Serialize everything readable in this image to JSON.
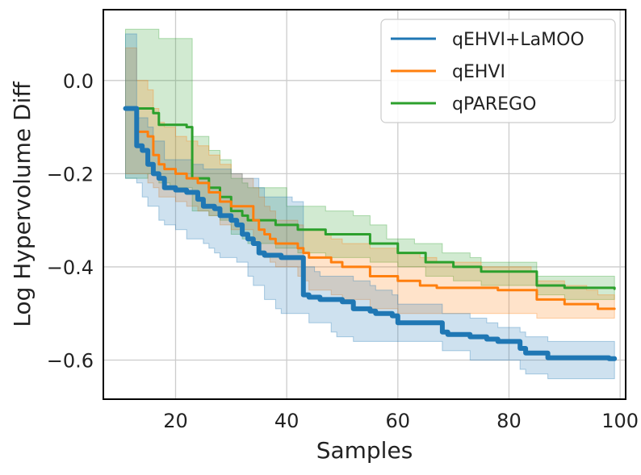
{
  "chart_data": {
    "type": "line",
    "xlabel": "Samples",
    "ylabel": "Log Hypervolume Diff",
    "xlim": [
      7,
      101
    ],
    "ylim": [
      -0.684,
      0.152
    ],
    "xticks": [
      20,
      40,
      60,
      80,
      100
    ],
    "xtick_labels": [
      "20",
      "40",
      "60",
      "80",
      "100"
    ],
    "yticks": [
      0.0,
      -0.2,
      -0.4,
      -0.6
    ],
    "ytick_labels": [
      "0.0",
      "−0.2",
      "−0.4",
      "−0.6"
    ],
    "grid": true,
    "legend_position": "top-right",
    "series": [
      {
        "name": "qEHVI+LaMOO",
        "color": "#1f77b4",
        "x": [
          11,
          12,
          13,
          14,
          15,
          16,
          17,
          18,
          20,
          21,
          22,
          23,
          24,
          25,
          26,
          27,
          28,
          29,
          30,
          31,
          32,
          33,
          34,
          35,
          36,
          37,
          38,
          39,
          40,
          41,
          42,
          43,
          44,
          45,
          46,
          47,
          48,
          49,
          50,
          51,
          52,
          53,
          54,
          55,
          56,
          57,
          58,
          59,
          60,
          61,
          62,
          63,
          64,
          65,
          66,
          67,
          68,
          69,
          70,
          71,
          72,
          73,
          74,
          75,
          76,
          77,
          78,
          79,
          80,
          81,
          82,
          83,
          84,
          85,
          86,
          87,
          88,
          89,
          90,
          92,
          94,
          96,
          98,
          99
        ],
        "y": [
          -0.06,
          -0.06,
          -0.14,
          -0.15,
          -0.18,
          -0.2,
          -0.21,
          -0.23,
          -0.235,
          -0.235,
          -0.24,
          -0.24,
          -0.255,
          -0.27,
          -0.27,
          -0.275,
          -0.29,
          -0.29,
          -0.3,
          -0.31,
          -0.33,
          -0.34,
          -0.35,
          -0.37,
          -0.375,
          -0.375,
          -0.375,
          -0.38,
          -0.38,
          -0.38,
          -0.38,
          -0.46,
          -0.465,
          -0.465,
          -0.47,
          -0.47,
          -0.47,
          -0.47,
          -0.475,
          -0.475,
          -0.49,
          -0.49,
          -0.49,
          -0.495,
          -0.5,
          -0.5,
          -0.5,
          -0.505,
          -0.52,
          -0.52,
          -0.52,
          -0.52,
          -0.52,
          -0.52,
          -0.52,
          -0.52,
          -0.54,
          -0.545,
          -0.545,
          -0.545,
          -0.545,
          -0.55,
          -0.55,
          -0.55,
          -0.555,
          -0.555,
          -0.56,
          -0.56,
          -0.56,
          -0.56,
          -0.575,
          -0.585,
          -0.585,
          -0.585,
          -0.585,
          -0.595,
          -0.595,
          -0.595,
          -0.595,
          -0.595,
          -0.595,
          -0.595,
          -0.597,
          -0.597
        ],
        "lower": [
          -0.21,
          -0.21,
          -0.22,
          -0.25,
          -0.27,
          -0.27,
          -0.3,
          -0.31,
          -0.32,
          -0.32,
          -0.34,
          -0.34,
          -0.34,
          -0.35,
          -0.36,
          -0.37,
          -0.38,
          -0.38,
          -0.38,
          -0.39,
          -0.39,
          -0.42,
          -0.44,
          -0.44,
          -0.47,
          -0.47,
          -0.49,
          -0.5,
          -0.5,
          -0.5,
          -0.5,
          -0.5,
          -0.52,
          -0.52,
          -0.52,
          -0.52,
          -0.54,
          -0.55,
          -0.55,
          -0.55,
          -0.56,
          -0.56,
          -0.56,
          -0.56,
          -0.56,
          -0.56,
          -0.56,
          -0.56,
          -0.56,
          -0.56,
          -0.56,
          -0.56,
          -0.56,
          -0.56,
          -0.56,
          -0.56,
          -0.58,
          -0.58,
          -0.58,
          -0.58,
          -0.58,
          -0.6,
          -0.6,
          -0.6,
          -0.6,
          -0.6,
          -0.6,
          -0.6,
          -0.6,
          -0.6,
          -0.62,
          -0.63,
          -0.63,
          -0.63,
          -0.63,
          -0.64,
          -0.64,
          -0.64,
          -0.64,
          -0.64,
          -0.64,
          -0.64,
          -0.64,
          -0.64
        ],
        "upper": [
          0.1,
          0.1,
          -0.08,
          -0.08,
          -0.1,
          -0.13,
          -0.13,
          -0.17,
          -0.17,
          -0.17,
          -0.17,
          -0.18,
          -0.18,
          -0.19,
          -0.19,
          -0.19,
          -0.19,
          -0.19,
          -0.2,
          -0.2,
          -0.21,
          -0.21,
          -0.21,
          -0.23,
          -0.25,
          -0.25,
          -0.25,
          -0.25,
          -0.25,
          -0.26,
          -0.26,
          -0.4,
          -0.4,
          -0.41,
          -0.42,
          -0.42,
          -0.42,
          -0.42,
          -0.42,
          -0.42,
          -0.43,
          -0.43,
          -0.43,
          -0.44,
          -0.45,
          -0.45,
          -0.45,
          -0.46,
          -0.48,
          -0.48,
          -0.48,
          -0.48,
          -0.48,
          -0.48,
          -0.48,
          -0.48,
          -0.5,
          -0.5,
          -0.5,
          -0.5,
          -0.5,
          -0.51,
          -0.51,
          -0.51,
          -0.52,
          -0.52,
          -0.53,
          -0.53,
          -0.53,
          -0.53,
          -0.54,
          -0.55,
          -0.55,
          -0.55,
          -0.55,
          -0.56,
          -0.56,
          -0.56,
          -0.56,
          -0.56,
          -0.56,
          -0.56,
          -0.56,
          -0.56
        ]
      },
      {
        "name": "qEHVI",
        "color": "#ff7f0e",
        "x": [
          11,
          12,
          13,
          15,
          16,
          17,
          18,
          20,
          22,
          24,
          26,
          28,
          30,
          32,
          34,
          35,
          36,
          37,
          38,
          40,
          42,
          43,
          44,
          47,
          48,
          50,
          55,
          60,
          62,
          64,
          67,
          70,
          72,
          75,
          78,
          80,
          82,
          84,
          85,
          88,
          90,
          94,
          96,
          98,
          99
        ],
        "y": [
          -0.06,
          -0.06,
          -0.11,
          -0.12,
          -0.16,
          -0.18,
          -0.19,
          -0.2,
          -0.21,
          -0.22,
          -0.24,
          -0.26,
          -0.27,
          -0.27,
          -0.3,
          -0.32,
          -0.33,
          -0.34,
          -0.35,
          -0.35,
          -0.36,
          -0.37,
          -0.38,
          -0.38,
          -0.39,
          -0.4,
          -0.42,
          -0.43,
          -0.43,
          -0.44,
          -0.445,
          -0.445,
          -0.445,
          -0.445,
          -0.45,
          -0.45,
          -0.45,
          -0.45,
          -0.47,
          -0.47,
          -0.48,
          -0.48,
          -0.49,
          -0.49,
          -0.49
        ],
        "lower": [
          -0.2,
          -0.2,
          -0.2,
          -0.22,
          -0.23,
          -0.25,
          -0.25,
          -0.26,
          -0.27,
          -0.28,
          -0.29,
          -0.31,
          -0.32,
          -0.32,
          -0.35,
          -0.37,
          -0.38,
          -0.39,
          -0.4,
          -0.4,
          -0.42,
          -0.43,
          -0.45,
          -0.45,
          -0.46,
          -0.47,
          -0.49,
          -0.5,
          -0.5,
          -0.5,
          -0.5,
          -0.5,
          -0.5,
          -0.5,
          -0.5,
          -0.5,
          -0.5,
          -0.5,
          -0.51,
          -0.51,
          -0.51,
          -0.51,
          -0.51,
          -0.51,
          -0.51
        ],
        "upper": [
          0.07,
          0.07,
          0.0,
          -0.02,
          -0.06,
          -0.09,
          -0.1,
          -0.12,
          -0.13,
          -0.14,
          -0.16,
          -0.18,
          -0.2,
          -0.21,
          -0.23,
          -0.25,
          -0.27,
          -0.28,
          -0.3,
          -0.3,
          -0.31,
          -0.32,
          -0.32,
          -0.33,
          -0.34,
          -0.35,
          -0.36,
          -0.37,
          -0.37,
          -0.38,
          -0.39,
          -0.39,
          -0.39,
          -0.4,
          -0.4,
          -0.4,
          -0.4,
          -0.41,
          -0.43,
          -0.43,
          -0.44,
          -0.45,
          -0.46,
          -0.46,
          -0.47
        ]
      },
      {
        "name": "qPAREGO",
        "color": "#2ca02c",
        "x": [
          11,
          13,
          15,
          16,
          17,
          19,
          22,
          23,
          25,
          26,
          28,
          30,
          32,
          33,
          36,
          38,
          40,
          42,
          44,
          47,
          50,
          52,
          55,
          57,
          58,
          60,
          63,
          65,
          68,
          70,
          73,
          75,
          80,
          84,
          85,
          88,
          90,
          95,
          99
        ],
        "y": [
          -0.06,
          -0.06,
          -0.06,
          -0.07,
          -0.095,
          -0.095,
          -0.1,
          -0.21,
          -0.21,
          -0.23,
          -0.25,
          -0.28,
          -0.29,
          -0.3,
          -0.3,
          -0.31,
          -0.31,
          -0.32,
          -0.32,
          -0.33,
          -0.33,
          -0.33,
          -0.35,
          -0.35,
          -0.35,
          -0.37,
          -0.37,
          -0.39,
          -0.39,
          -0.4,
          -0.4,
          -0.41,
          -0.41,
          -0.41,
          -0.44,
          -0.44,
          -0.445,
          -0.445,
          -0.447
        ],
        "lower": [
          -0.21,
          -0.21,
          -0.2,
          -0.2,
          -0.22,
          -0.23,
          -0.23,
          -0.28,
          -0.28,
          -0.29,
          -0.3,
          -0.33,
          -0.34,
          -0.35,
          -0.35,
          -0.36,
          -0.36,
          -0.37,
          -0.37,
          -0.38,
          -0.38,
          -0.38,
          -0.39,
          -0.39,
          -0.39,
          -0.4,
          -0.4,
          -0.42,
          -0.42,
          -0.43,
          -0.43,
          -0.44,
          -0.44,
          -0.44,
          -0.46,
          -0.46,
          -0.47,
          -0.47,
          -0.47
        ],
        "upper": [
          0.11,
          0.11,
          0.11,
          0.11,
          0.09,
          0.09,
          0.09,
          -0.12,
          -0.12,
          -0.15,
          -0.17,
          -0.21,
          -0.22,
          -0.23,
          -0.23,
          -0.23,
          -0.27,
          -0.27,
          -0.27,
          -0.28,
          -0.28,
          -0.29,
          -0.31,
          -0.31,
          -0.34,
          -0.34,
          -0.35,
          -0.35,
          -0.37,
          -0.37,
          -0.38,
          -0.39,
          -0.39,
          -0.39,
          -0.42,
          -0.42,
          -0.42,
          -0.42,
          -0.43
        ]
      }
    ]
  }
}
